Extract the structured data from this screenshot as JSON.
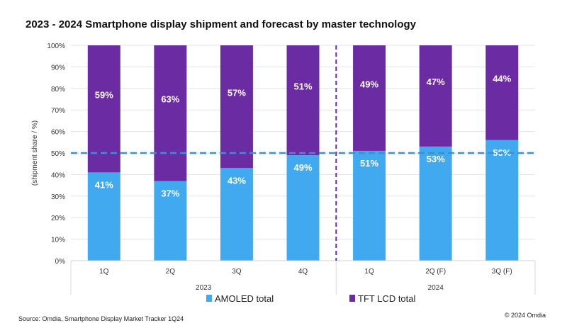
{
  "title": "2023 - 2024 Smartphone display shipment and forecast by master technology",
  "source": "Source: Omdia, Smartphone Display Market Tracker 1Q24",
  "copyright": "© 2024 Omdia",
  "colors": {
    "amoled": "#41A9EF",
    "tft": "#6B2BA3",
    "reference_line": "#3A8FD8"
  },
  "chart_data": {
    "type": "bar",
    "stacked": true,
    "ylabel": "(shipment share / %)",
    "ylim": [
      0,
      100
    ],
    "yticks": [
      "0%",
      "10%",
      "20%",
      "30%",
      "40%",
      "50%",
      "60%",
      "70%",
      "80%",
      "90%",
      "100%"
    ],
    "categories": [
      "1Q",
      "2Q",
      "3Q",
      "4Q",
      "1Q",
      "2Q (F)",
      "3Q (F)"
    ],
    "groups": [
      {
        "label": "2023",
        "count": 4
      },
      {
        "label": "2024",
        "count": 3
      }
    ],
    "series": [
      {
        "name": "AMOLED total",
        "values": [
          41,
          37,
          43,
          49,
          51,
          53,
          56
        ],
        "labels": [
          "41%",
          "37%",
          "43%",
          "49%",
          "51%",
          "53%",
          "56%"
        ]
      },
      {
        "name": "TFT LCD total",
        "values": [
          59,
          63,
          57,
          51,
          49,
          47,
          44
        ],
        "labels": [
          "59%",
          "63%",
          "57%",
          "51%",
          "49%",
          "47%",
          "44%"
        ]
      }
    ],
    "reference_line": {
      "y": 50,
      "style": "dashed"
    },
    "legend": "bottom",
    "grid": true
  }
}
